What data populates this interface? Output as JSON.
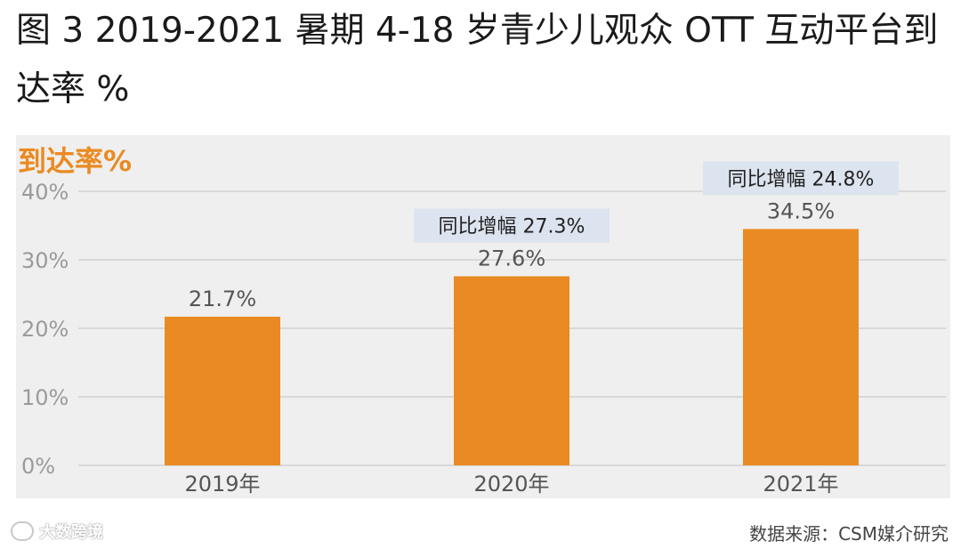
{
  "title": "图 3 2019-2021 暑期 4-18 岁青少儿观众 OTT 互动平台到达率 %",
  "source": "数据来源：CSM媒介研究",
  "watermark": {
    "text": "大数跨境",
    "icon": "brand-logo-icon"
  },
  "colors": {
    "bar": "#ea8a22",
    "grid": "#d8d8d8",
    "annotation_bg": "#dce4ef",
    "panel_bg": "#efefef"
  },
  "chart_data": {
    "type": "bar",
    "ylabel": "到达率%",
    "categories": [
      "2019年",
      "2020年",
      "2021年"
    ],
    "values": [
      21.7,
      27.6,
      34.5
    ],
    "data_labels": [
      "21.7%",
      "27.6%",
      "34.5%"
    ],
    "yticks": [
      "0%",
      "10%",
      "20%",
      "30%",
      "40%"
    ],
    "ytick_values": [
      0,
      10,
      20,
      30,
      40
    ],
    "ylim": [
      0,
      40
    ],
    "grid": true,
    "annotations": [
      {
        "category": "2020年",
        "text": "同比增幅 27.3%"
      },
      {
        "category": "2021年",
        "text": "同比增幅 24.8%"
      }
    ]
  }
}
